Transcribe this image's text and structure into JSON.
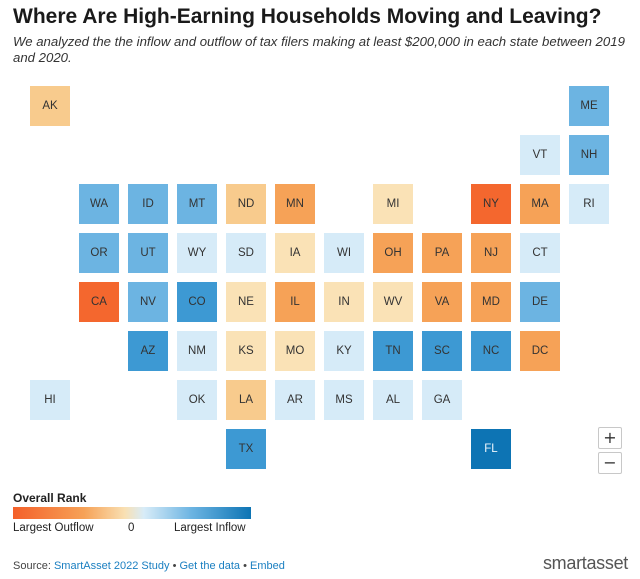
{
  "header": {
    "title": "Where Are High-Earning Households Moving and Leaving?",
    "subtitle": "We analyzed the the inflow and outflow of tax filers making at least $200,000 in each state between 2019 and 2020."
  },
  "colors": {
    "strong_outflow": "#f4672e",
    "outflow": "#f6a257",
    "mild_outflow": "#f8cb8d",
    "slight_outflow": "#fae2b6",
    "slight_inflow": "#d6ebf8",
    "mild_inflow": "#a6d3ef",
    "inflow": "#6cb4e2",
    "strong_inflow": "#3d99d3",
    "top_inflow": "#0d74b4"
  },
  "states": [
    {
      "abbr": "AK",
      "level": "mild_outflow"
    },
    {
      "abbr": "ME",
      "level": "inflow"
    },
    {
      "abbr": "VT",
      "level": "slight_inflow"
    },
    {
      "abbr": "NH",
      "level": "inflow"
    },
    {
      "abbr": "WA",
      "level": "inflow"
    },
    {
      "abbr": "ID",
      "level": "inflow"
    },
    {
      "abbr": "MT",
      "level": "inflow"
    },
    {
      "abbr": "ND",
      "level": "mild_outflow"
    },
    {
      "abbr": "MN",
      "level": "outflow"
    },
    {
      "abbr": "MI",
      "level": "slight_outflow"
    },
    {
      "abbr": "NY",
      "level": "strong_outflow"
    },
    {
      "abbr": "MA",
      "level": "outflow"
    },
    {
      "abbr": "RI",
      "level": "slight_inflow"
    },
    {
      "abbr": "OR",
      "level": "inflow"
    },
    {
      "abbr": "UT",
      "level": "inflow"
    },
    {
      "abbr": "WY",
      "level": "slight_inflow"
    },
    {
      "abbr": "SD",
      "level": "slight_inflow"
    },
    {
      "abbr": "IA",
      "level": "slight_outflow"
    },
    {
      "abbr": "WI",
      "level": "slight_inflow"
    },
    {
      "abbr": "OH",
      "level": "outflow"
    },
    {
      "abbr": "PA",
      "level": "outflow"
    },
    {
      "abbr": "NJ",
      "level": "outflow"
    },
    {
      "abbr": "CT",
      "level": "slight_inflow"
    },
    {
      "abbr": "CA",
      "level": "strong_outflow"
    },
    {
      "abbr": "NV",
      "level": "inflow"
    },
    {
      "abbr": "CO",
      "level": "strong_inflow"
    },
    {
      "abbr": "NE",
      "level": "slight_outflow"
    },
    {
      "abbr": "IL",
      "level": "outflow"
    },
    {
      "abbr": "IN",
      "level": "slight_outflow"
    },
    {
      "abbr": "WV",
      "level": "slight_outflow"
    },
    {
      "abbr": "VA",
      "level": "outflow"
    },
    {
      "abbr": "MD",
      "level": "outflow"
    },
    {
      "abbr": "DE",
      "level": "inflow"
    },
    {
      "abbr": "AZ",
      "level": "strong_inflow"
    },
    {
      "abbr": "NM",
      "level": "slight_inflow"
    },
    {
      "abbr": "KS",
      "level": "slight_outflow"
    },
    {
      "abbr": "MO",
      "level": "slight_outflow"
    },
    {
      "abbr": "KY",
      "level": "slight_inflow"
    },
    {
      "abbr": "TN",
      "level": "strong_inflow"
    },
    {
      "abbr": "SC",
      "level": "strong_inflow"
    },
    {
      "abbr": "NC",
      "level": "strong_inflow"
    },
    {
      "abbr": "DC",
      "level": "outflow"
    },
    {
      "abbr": "HI",
      "level": "slight_inflow"
    },
    {
      "abbr": "OK",
      "level": "slight_inflow"
    },
    {
      "abbr": "LA",
      "level": "mild_outflow"
    },
    {
      "abbr": "AR",
      "level": "slight_inflow"
    },
    {
      "abbr": "MS",
      "level": "slight_inflow"
    },
    {
      "abbr": "AL",
      "level": "slight_inflow"
    },
    {
      "abbr": "GA",
      "level": "slight_inflow"
    },
    {
      "abbr": "TX",
      "level": "strong_inflow"
    },
    {
      "abbr": "FL",
      "level": "top_inflow"
    }
  ],
  "zoom": {
    "in_label": "+",
    "out_label": "−"
  },
  "legend": {
    "title": "Overall Rank",
    "left_label": "Largest Outflow",
    "mid_label": "0",
    "right_label": "Largest Inflow"
  },
  "footer": {
    "prefix": "Source: ",
    "source_link": "SmartAsset 2022 Study",
    "sep1": " • ",
    "data_link": "Get the data",
    "sep2": " • ",
    "embed_link": "Embed",
    "brand": "smartasset"
  }
}
